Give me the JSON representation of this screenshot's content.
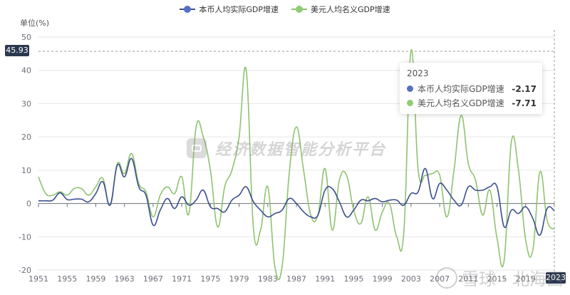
{
  "legend": [
    {
      "label": "本币人均实际GDP增速",
      "color": "#3b4f8f",
      "marker": "#5470c6"
    },
    {
      "label": "美元人均名义GDP增速",
      "color": "#8fc26f",
      "marker": "#91cc75"
    }
  ],
  "yaxis": {
    "unit_label": "单位(%)",
    "ticks": [
      "50",
      "40",
      "30",
      "20",
      "10",
      "0",
      "-10",
      "-20"
    ]
  },
  "xaxis": {
    "ticks": [
      "1951",
      "1955",
      "1959",
      "1963",
      "1967",
      "1971",
      "1975",
      "1979",
      "1983",
      "1987",
      "1991",
      "1995",
      "1999",
      "2003",
      "2007",
      "2011",
      "2015",
      "2019",
      "2023"
    ]
  },
  "axis_pointer": {
    "y_label": "45.93",
    "x_label": "2023"
  },
  "tooltip": {
    "title": "2023",
    "rows": [
      {
        "name": "本币人均实际GDP增速",
        "value": "-2.17",
        "color": "#5470c6"
      },
      {
        "name": "美元人均名义GDP增速",
        "value": "-7.71",
        "color": "#91cc75"
      }
    ]
  },
  "watermark": {
    "center_text": "经济数据智能分析平台",
    "corner_text": "雪球 · 北海西"
  },
  "chart_data": {
    "type": "line",
    "title": "",
    "xlabel": "",
    "ylabel": "单位(%)",
    "ylim": [
      -20,
      50
    ],
    "grid": true,
    "legend_position": "top-center",
    "x": [
      1951,
      1952,
      1953,
      1954,
      1955,
      1956,
      1957,
      1958,
      1959,
      1960,
      1961,
      1962,
      1963,
      1964,
      1965,
      1966,
      1967,
      1968,
      1969,
      1970,
      1971,
      1972,
      1973,
      1974,
      1975,
      1976,
      1977,
      1978,
      1979,
      1980,
      1981,
      1982,
      1983,
      1984,
      1985,
      1986,
      1987,
      1988,
      1989,
      1990,
      1991,
      1992,
      1993,
      1994,
      1995,
      1996,
      1997,
      1998,
      1999,
      2000,
      2001,
      2002,
      2003,
      2004,
      2005,
      2006,
      2007,
      2008,
      2009,
      2010,
      2011,
      2012,
      2013,
      2014,
      2015,
      2016,
      2017,
      2018,
      2019,
      2020,
      2021,
      2022,
      2023
    ],
    "series": [
      {
        "name": "本币人均实际GDP增速",
        "color": "#3b4f8f",
        "values": [
          0.8,
          0.8,
          1.0,
          3.2,
          1.2,
          1.3,
          1.3,
          0.5,
          3.0,
          6.5,
          -0.5,
          11.5,
          8.0,
          13.5,
          5.0,
          2.5,
          -6.5,
          -2.0,
          1.5,
          -1.5,
          2.0,
          -0.5,
          1.0,
          4.0,
          -1.0,
          -1.5,
          -2.5,
          1.0,
          2.5,
          5.0,
          0.5,
          -2.0,
          -4.0,
          -3.0,
          -2.0,
          1.5,
          0.0,
          -2.5,
          -4.0,
          -3.5,
          4.0,
          4.5,
          0.5,
          -4.0,
          -2.0,
          1.0,
          0.8,
          1.5,
          0.5,
          1.0,
          1.0,
          -0.5,
          3.0,
          3.5,
          10.5,
          1.5,
          6.0,
          4.0,
          1.0,
          -0.5,
          5.0,
          4.0,
          4.0,
          5.0,
          5.0,
          -7.0,
          -2.0,
          -3.0,
          -1.0,
          -4.5,
          -9.5,
          -1.5,
          -2.17
        ]
      },
      {
        "name": "美元人均名义GDP增速",
        "color": "#8fc26f",
        "values": [
          8.0,
          3.0,
          2.5,
          3.5,
          2.5,
          4.5,
          4.5,
          2.5,
          5.0,
          7.5,
          -0.5,
          12.0,
          9.0,
          15.0,
          6.0,
          3.5,
          -4.0,
          2.5,
          5.0,
          3.0,
          8.0,
          -3.0,
          23.0,
          20.0,
          10.0,
          -7.0,
          5.0,
          10.0,
          20.0,
          40.0,
          -7.5,
          -8.0,
          5.0,
          -19.0,
          -19.0,
          9.0,
          23.0,
          10.0,
          -3.5,
          -3.5,
          10.5,
          -8.0,
          7.0,
          8.5,
          -2.0,
          -6.0,
          2.0,
          -8.0,
          -2.5,
          0.0,
          -10.0,
          -8.5,
          45.93,
          10.0,
          8.5,
          9.0,
          8.5,
          -4.0,
          10.0,
          26.5,
          12.0,
          7.0,
          -3.5,
          4.0,
          -10.5,
          -17.0,
          18.5,
          10.0,
          -11.0,
          -14.0,
          9.5,
          -5.0,
          -7.71
        ]
      }
    ]
  }
}
